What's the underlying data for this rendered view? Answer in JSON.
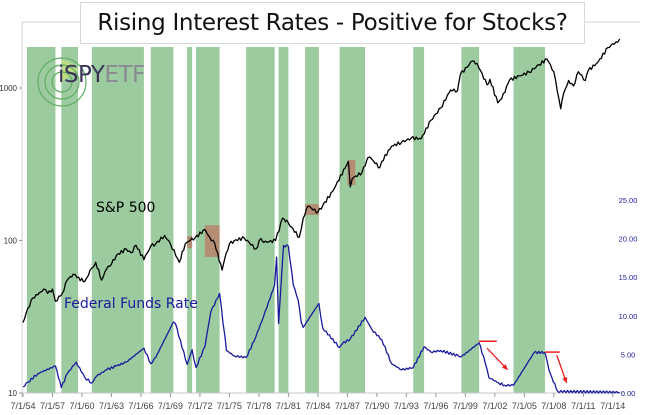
{
  "chart_data": {
    "type": "line",
    "title": "Rising Interest Rates - Positive for Stocks?",
    "x_tick_labels": [
      "7/1/54",
      "7/1/57",
      "7/1/60",
      "7/1/63",
      "7/1/66",
      "7/1/69",
      "7/1/72",
      "7/1/75",
      "7/1/78",
      "7/1/81",
      "7/1/84",
      "7/1/87",
      "7/1/90",
      "7/1/93",
      "7/1/96",
      "7/1/99",
      "7/1/02",
      "7/1/05",
      "7/1/08",
      "7/1/11",
      "7/1/14"
    ],
    "x_tick_years": [
      1954.5,
      1957.5,
      1960.5,
      1963.5,
      1966.5,
      1969.5,
      1972.5,
      1975.5,
      1978.5,
      1981.5,
      1984.5,
      1987.5,
      1990.5,
      1993.5,
      1996.5,
      1999.5,
      2002.5,
      2005.5,
      2008.5,
      2011.5,
      2014.5
    ],
    "xlim": [
      1954.5,
      2015.5
    ],
    "y_left": {
      "scale": "log",
      "range": [
        10,
        2400
      ],
      "tick_labels": [
        "10",
        "100",
        "1000"
      ],
      "ticks": [
        10,
        100,
        1000
      ]
    },
    "y_right": {
      "scale": "linear",
      "range": [
        0,
        25
      ],
      "tick_labels": [
        "0.00",
        "5.00",
        "10.00",
        "15.00",
        "20.00",
        "25.00"
      ],
      "ticks": [
        0,
        5,
        10,
        15,
        20,
        25
      ],
      "color": "#1a1a9e"
    },
    "grid": false,
    "series": [
      {
        "name": "S&P 500",
        "axis": "left",
        "color": "#000000",
        "x": [
          1954.5,
          1955,
          1955.5,
          1956,
          1956.6,
          1957,
          1957.5,
          1957.8,
          1958.5,
          1959,
          1959.6,
          1960,
          1960.8,
          1961.5,
          1961.9,
          1962.5,
          1963,
          1963.5,
          1964,
          1965,
          1965.5,
          1966,
          1966.8,
          1967.5,
          1968,
          1968.9,
          1969.5,
          1970.4,
          1971,
          1971.5,
          1972,
          1973,
          1973.5,
          1974,
          1974.75,
          1975,
          1975.5,
          1976,
          1977,
          1978.2,
          1978.7,
          1979,
          1980.2,
          1980.9,
          1981.5,
          1982.6,
          1983,
          1983.5,
          1984.5,
          1985,
          1986,
          1987.6,
          1987.8,
          1988,
          1989,
          1989.6,
          1990,
          1990.8,
          1991,
          1992,
          1993,
          1994,
          1995,
          1996,
          1997,
          1998,
          1998.7,
          1999,
          2000.2,
          2000.7,
          2001.7,
          2002,
          2002.8,
          2003.2,
          2004,
          2005,
          2006,
          2007,
          2007.8,
          2008.5,
          2009.2,
          2009.5,
          2010,
          2010.5,
          2011,
          2011.7,
          2012,
          2013,
          2014,
          2014.8,
          2015.2
        ],
        "values": [
          29,
          36,
          42,
          44,
          48,
          45,
          48,
          40,
          45,
          55,
          60,
          57,
          54,
          66,
          72,
          55,
          65,
          70,
          80,
          88,
          83,
          93,
          75,
          92,
          95,
          108,
          95,
          72,
          95,
          100,
          104,
          118,
          105,
          96,
          64,
          75,
          95,
          100,
          104,
          88,
          103,
          97,
          100,
          140,
          130,
          105,
          140,
          168,
          153,
          170,
          210,
          330,
          225,
          255,
          280,
          350,
          340,
          300,
          330,
          415,
          440,
          470,
          465,
          615,
          740,
          970,
          960,
          1230,
          1500,
          1450,
          1050,
          1140,
          800,
          850,
          1130,
          1200,
          1270,
          1420,
          1550,
          1280,
          730,
          920,
          1120,
          1030,
          1280,
          1120,
          1300,
          1480,
          1840,
          2000,
          2100
        ]
      },
      {
        "name": "Federal Funds Rate",
        "axis": "right",
        "color": "#1a1a9e",
        "x": [
          1954.5,
          1955,
          1956,
          1957.8,
          1958.4,
          1959,
          1959.9,
          1960.8,
          1961.5,
          1962,
          1963,
          1964,
          1965,
          1966.8,
          1967.5,
          1968,
          1969.8,
          1970,
          1971.2,
          1971.7,
          1972.1,
          1973,
          1973.6,
          1974.5,
          1975.2,
          1976,
          1977.2,
          1978,
          1979,
          1980.1,
          1980.3,
          1980.5,
          1981,
          1981.5,
          1982,
          1982.5,
          1982.8,
          1983,
          1984.6,
          1985,
          1986.7,
          1987,
          1987.8,
          1989.3,
          1990,
          1991,
          1992,
          1993,
          1994.2,
          1995.3,
          1996,
          1997,
          1998.8,
          1999.1,
          2000.9,
          2001.5,
          2001.9,
          2002.9,
          2003.5,
          2004.4,
          2006.5,
          2007.6,
          2008,
          2008.3,
          2008.9,
          2015.2
        ],
        "values": [
          0.8,
          1.4,
          2.5,
          3.5,
          0.7,
          2.5,
          4.0,
          2.0,
          1.3,
          2.2,
          3.0,
          3.5,
          4.0,
          5.8,
          3.8,
          4.6,
          9.2,
          9.0,
          3.7,
          5.6,
          3.3,
          6.0,
          10.5,
          12.9,
          5.5,
          4.8,
          4.6,
          6.7,
          10.0,
          14.0,
          17.6,
          9.0,
          19.1,
          19.0,
          14.0,
          12.0,
          9.2,
          8.5,
          11.6,
          8.4,
          5.9,
          6.4,
          7.0,
          9.8,
          8.2,
          6.9,
          3.8,
          3.0,
          3.3,
          6.0,
          5.3,
          5.5,
          4.8,
          4.7,
          6.5,
          4.0,
          2.0,
          1.3,
          1.0,
          1.0,
          5.25,
          5.25,
          3.0,
          2.0,
          0.2,
          0.1
        ]
      }
    ],
    "rising_rate_periods": [
      [
        1954.9,
        1957.8
      ],
      [
        1958.4,
        1960.1
      ],
      [
        1961.5,
        1966.8
      ],
      [
        1967.5,
        1969.8
      ],
      [
        1971.2,
        1971.7
      ],
      [
        1972.1,
        1974.5
      ],
      [
        1977.2,
        1980.1
      ],
      [
        1980.5,
        1981.5
      ],
      [
        1983.2,
        1984.6
      ],
      [
        1986.7,
        1989.3
      ],
      [
        1994.2,
        1995.3
      ],
      [
        1999.1,
        2000.9
      ],
      [
        2004.4,
        2007.6
      ]
    ],
    "rising_rate_color": "#9ccb9f",
    "highlight_boxes": [
      {
        "x": [
          1971.2,
          1971.7
        ],
        "y": [
          89,
          107
        ]
      },
      {
        "x": [
          1973.0,
          1974.5
        ],
        "y": [
          78,
          126
        ]
      },
      {
        "x": [
          1983.2,
          1984.6
        ],
        "y": [
          147,
          173
        ]
      },
      {
        "x": [
          1987.5,
          1988.3
        ],
        "y": [
          231,
          337
        ]
      }
    ],
    "highlight_color": "#b9826a",
    "red_annotations": {
      "color": "#ee1c1c",
      "level_lines": [
        {
          "x": [
            2000.9,
            2002.7
          ],
          "rate": 6.7
        },
        {
          "x": [
            2007.6,
            2009.1
          ],
          "rate": 5.3
        }
      ],
      "arrows": [
        {
          "from": [
            2001.7,
            5.8
          ],
          "to": [
            2003.8,
            3.0
          ]
        },
        {
          "from": [
            2008.8,
            4.9
          ],
          "to": [
            2009.8,
            1.3
          ]
        }
      ]
    },
    "series_labels": {
      "sp500": "S&P 500",
      "fed_funds": "Federal Funds Rate"
    },
    "logo": {
      "text_a": "iSPY",
      "text_b": "ETF"
    }
  }
}
